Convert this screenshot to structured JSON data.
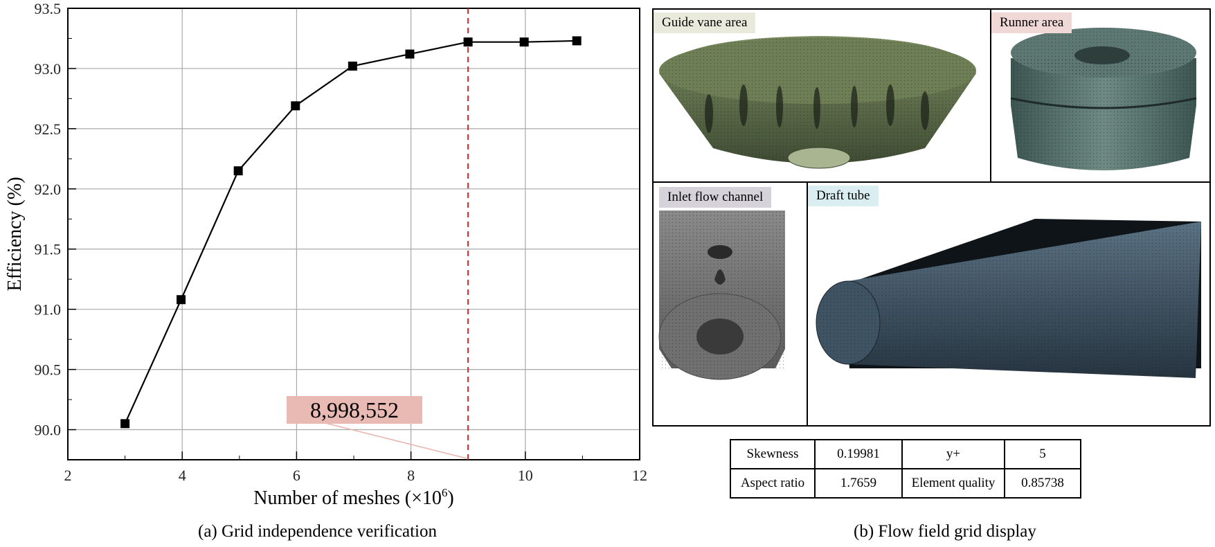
{
  "chart_data": {
    "type": "line",
    "title": "",
    "xlabel": "Number of meshes (×10",
    "xlabel_sup": "6",
    "xlabel_end": ")",
    "ylabel": "Efficiency (%)",
    "xlim": [
      2,
      12
    ],
    "ylim": [
      89.75,
      93.5
    ],
    "x_ticks": [
      "2",
      "4",
      "6",
      "8",
      "10",
      "12"
    ],
    "y_ticks": [
      "90.0",
      "90.5",
      "91.0",
      "91.5",
      "92.0",
      "92.5",
      "93.0",
      "93.5"
    ],
    "grid": true,
    "series": [
      {
        "name": "Efficiency",
        "x": [
          3.0,
          3.98,
          4.98,
          5.98,
          6.98,
          7.98,
          8.998552,
          9.98,
          10.9
        ],
        "y": [
          90.05,
          91.08,
          92.15,
          92.69,
          93.02,
          93.12,
          93.22,
          93.22,
          93.23
        ]
      }
    ],
    "reference_line": {
      "x": 8.998552,
      "color": "#d9262a",
      "style": "dashed"
    },
    "annotation": {
      "text": "8,998,552",
      "x": 8.998552,
      "background": "#e9b9b3"
    }
  },
  "captions": {
    "left": "(a) Grid independence verification",
    "right": "(b) Flow field grid display"
  },
  "panels": [
    {
      "name": "guide-vane",
      "label": "Guide vane area",
      "label_color": "#e9eadc"
    },
    {
      "name": "runner",
      "label": "Runner area",
      "label_color": "#f0d8d6"
    },
    {
      "name": "inlet",
      "label": "Inlet flow channel",
      "label_color": "#d6d2da"
    },
    {
      "name": "draft-tube",
      "label": "Draft tube",
      "label_color": "#daeef2"
    }
  ],
  "metrics": {
    "skewness_label": "Skewness",
    "skewness_value": "0.19981",
    "yplus_label": "y+",
    "yplus_value": "5",
    "aspect_label": "Aspect ratio",
    "aspect_value": "1.7659",
    "quality_label": "Element quality",
    "quality_value": "0.85738"
  },
  "colors": {
    "line": "#000000",
    "marker": "#000000",
    "grid": "#a8a8a8",
    "guide_mesh": "#5a6b4a",
    "runner_mesh": "#4f6a64",
    "inlet_mesh": "#7c7c7c",
    "draft_mesh": "#3f5464"
  }
}
